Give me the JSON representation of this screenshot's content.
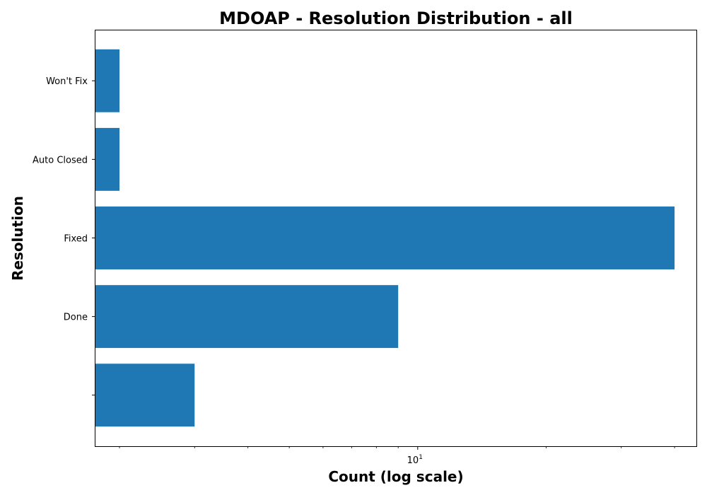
{
  "chart_data": {
    "type": "bar",
    "orientation": "horizontal",
    "title": "MDOAP - Resolution Distribution - all",
    "xlabel": "Count (log scale)",
    "ylabel": "Resolution",
    "x_scale": "log",
    "xlim": [
      1.75,
      45
    ],
    "categories": [
      "",
      "Done",
      "Fixed",
      "Auto Closed",
      "Won't Fix"
    ],
    "values": [
      3,
      9,
      40,
      2,
      2
    ],
    "bar_color": "#1f77b4",
    "x_major_ticks": [
      {
        "value": 10,
        "base": "10",
        "exp": "1"
      }
    ],
    "x_minor_ticks": [
      2,
      3,
      4,
      5,
      6,
      7,
      8,
      9,
      20,
      30,
      40
    ],
    "grid": false
  }
}
